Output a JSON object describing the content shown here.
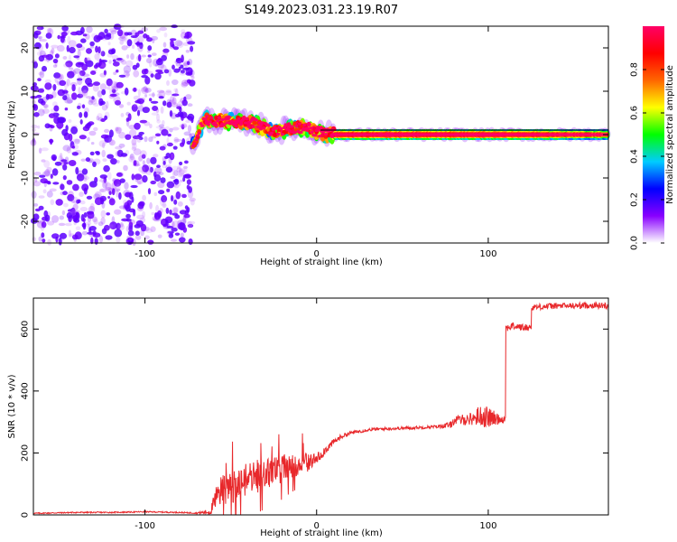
{
  "figure": {
    "title": "S149.2023.031.23.19.R07"
  },
  "chart_data": [
    {
      "type": "heatmap",
      "xlabel": "Height of straight line (km)",
      "ylabel": "Frequency (Hz)",
      "xlim": [
        -165,
        170
      ],
      "ylim": [
        -25,
        25
      ],
      "x_ticks": [
        -100,
        0,
        100
      ],
      "y_ticks": [
        -20,
        -10,
        0,
        10,
        20
      ],
      "colorbar": {
        "label": "Normalized spectral amplitude",
        "range": [
          0,
          1
        ],
        "ticks": [
          0.0,
          0.2,
          0.4,
          0.6,
          0.8
        ],
        "colormap": [
          "#ffffff",
          "#8800ff",
          "#0000ff",
          "#00ccff",
          "#00ff00",
          "#ffff00",
          "#ff6600",
          "#ff0000",
          "#ff0066"
        ]
      },
      "features": {
        "noise_region_x": [
          -165,
          -72
        ],
        "signal_ridge": [
          {
            "x": -72,
            "freq": -2.0,
            "amp": 0.5
          },
          {
            "x": -65,
            "freq": 3.5,
            "amp": 0.6
          },
          {
            "x": -55,
            "freq": 3.0,
            "amp": 0.65
          },
          {
            "x": -45,
            "freq": 3.0,
            "amp": 0.7
          },
          {
            "x": -35,
            "freq": 2.5,
            "amp": 0.7
          },
          {
            "x": -25,
            "freq": 0.5,
            "amp": 0.6
          },
          {
            "x": -15,
            "freq": 1.5,
            "amp": 0.7
          },
          {
            "x": -5,
            "freq": 1.5,
            "amp": 0.75
          },
          {
            "x": 0,
            "freq": 0.5,
            "amp": 0.8
          },
          {
            "x": 10,
            "freq": 0.0,
            "amp": 0.9
          },
          {
            "x": 50,
            "freq": 0.0,
            "amp": 0.95
          },
          {
            "x": 100,
            "freq": 0.0,
            "amp": 0.9
          },
          {
            "x": 130,
            "freq": 0.0,
            "amp": 0.8
          },
          {
            "x": 170,
            "freq": 0.0,
            "amp": 0.5
          }
        ]
      }
    },
    {
      "type": "line",
      "xlabel": "Height of straight line (km)",
      "ylabel": "SNR (10 * v/v)",
      "xlim": [
        -165,
        170
      ],
      "ylim": [
        0,
        700
      ],
      "x_ticks": [
        -100,
        0,
        100
      ],
      "y_ticks": [
        0,
        200,
        400,
        600
      ],
      "series": [
        {
          "color": "#e8282b",
          "x": [
            -165,
            -140,
            -120,
            -100,
            -80,
            -70,
            -62,
            -58,
            -55,
            -50,
            -45,
            -40,
            -35,
            -30,
            -25,
            -20,
            -15,
            -10,
            -5,
            0,
            5,
            10,
            15,
            20,
            25,
            30,
            40,
            50,
            60,
            70,
            78,
            80,
            90,
            95,
            100,
            105,
            110,
            111,
            115,
            120,
            125,
            126,
            130,
            140,
            150,
            160,
            170
          ],
          "y": [
            5,
            8,
            8,
            10,
            8,
            6,
            10,
            60,
            80,
            90,
            100,
            115,
            125,
            130,
            140,
            150,
            160,
            165,
            170,
            180,
            210,
            235,
            255,
            265,
            270,
            275,
            278,
            280,
            282,
            285,
            290,
            305,
            310,
            320,
            315,
            310,
            310,
            605,
            610,
            605,
            605,
            670,
            672,
            675,
            675,
            677,
            675
          ],
          "noise_amplitude": [
            2,
            2,
            2,
            2,
            2,
            2,
            10,
            45,
            50,
            55,
            55,
            55,
            55,
            50,
            50,
            45,
            40,
            35,
            30,
            20,
            15,
            10,
            8,
            6,
            6,
            5,
            5,
            5,
            5,
            5,
            10,
            15,
            20,
            35,
            35,
            20,
            10,
            12,
            12,
            12,
            10,
            10,
            10,
            10,
            10,
            10,
            10
          ]
        }
      ]
    }
  ]
}
